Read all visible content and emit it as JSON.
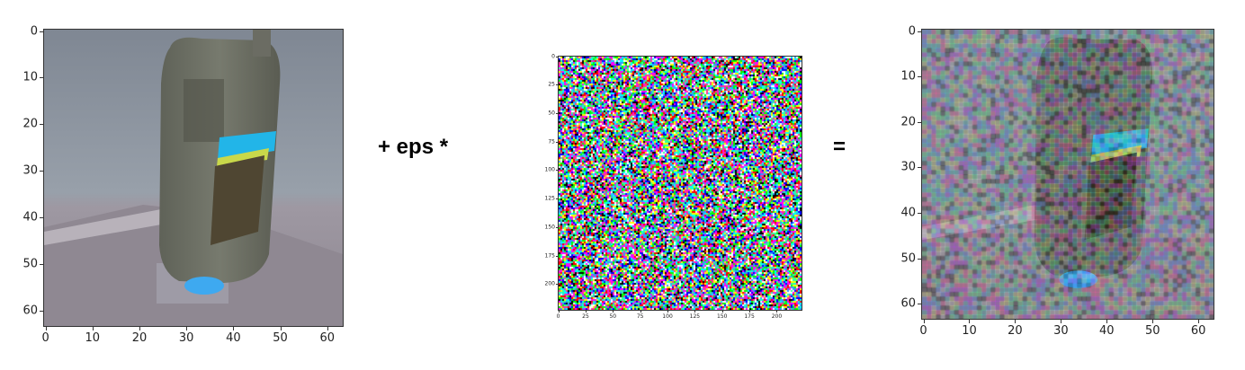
{
  "figure": {
    "left_image": {
      "x_ticks": [
        "0",
        "10",
        "20",
        "30",
        "40",
        "50",
        "60"
      ],
      "y_ticks": [
        "0",
        "10",
        "20",
        "30",
        "40",
        "50",
        "60"
      ],
      "pixels": "64x64"
    },
    "operator_plus": "+ eps *",
    "noise_image": {
      "x_ticks": [
        "0",
        "25",
        "50",
        "75",
        "100",
        "125",
        "150",
        "175",
        "200"
      ],
      "y_ticks": [
        "0",
        "25",
        "50",
        "75",
        "100",
        "125",
        "150",
        "175",
        "200"
      ],
      "pixels": "224x224"
    },
    "operator_equals": "=",
    "right_image": {
      "x_ticks": [
        "0",
        "10",
        "20",
        "30",
        "40",
        "50",
        "60"
      ],
      "y_ticks": [
        "0",
        "10",
        "20",
        "30",
        "40",
        "50",
        "60"
      ],
      "pixels": "64x64"
    }
  },
  "colors": {
    "background_gray": "#8a929c",
    "bottle": "#6e6f63",
    "label_blue": "#22b5e8",
    "label_yellow": "#c9d84a",
    "floor": "#8c858f"
  }
}
